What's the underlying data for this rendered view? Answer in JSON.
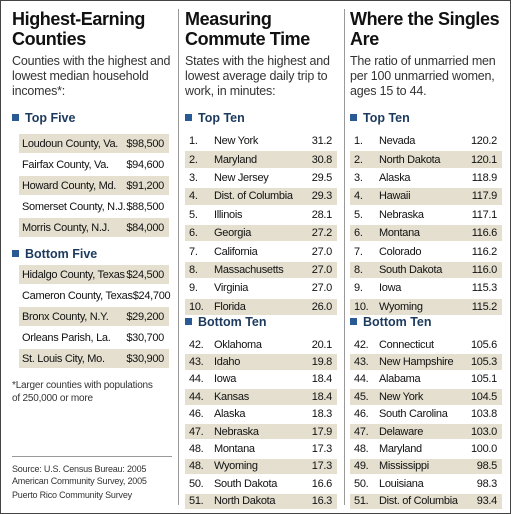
{
  "counties": {
    "title": "Highest-Earning Counties",
    "subtitle": "Counties with the highest and lowest median household incomes*:",
    "top": {
      "heading": "Top Five",
      "rows": [
        {
          "name": "Loudoun County, Va.",
          "value": "$98,500"
        },
        {
          "name": "Fairfax County, Va.",
          "value": "$94,600"
        },
        {
          "name": "Howard County, Md.",
          "value": "$91,200"
        },
        {
          "name": "Somerset County, N.J.",
          "value": "$88,500"
        },
        {
          "name": "Morris County, N.J.",
          "value": "$84,000"
        }
      ]
    },
    "bottom": {
      "heading": "Bottom Five",
      "rows": [
        {
          "name": "Hidalgo County, Texas",
          "value": "$24,500"
        },
        {
          "name": "Cameron County, Texas",
          "value": "$24,700"
        },
        {
          "name": "Bronx County, N.Y.",
          "value": "$29,200"
        },
        {
          "name": "Orleans Parish, La.",
          "value": "$30,700"
        },
        {
          "name": "St. Louis City, Mo.",
          "value": "$30,900"
        }
      ]
    },
    "footnote": "*Larger counties with populations of 250,000 or more",
    "source": "Source: U.S. Census Bureau: 2005 American Community Survey, 2005",
    "source_2": "Puerto Rico Community Survey"
  },
  "commute": {
    "title": "Measuring Commute Time",
    "subtitle": "States with the highest and lowest average daily trip to work, in minutes:",
    "top": {
      "heading": "Top Ten",
      "rows": [
        {
          "rank": "1.",
          "name": "New York",
          "value": "31.2"
        },
        {
          "rank": "2.",
          "name": "Maryland",
          "value": "30.8"
        },
        {
          "rank": "3.",
          "name": "New Jersey",
          "value": "29.5"
        },
        {
          "rank": "4.",
          "name": "Dist. of Columbia",
          "value": "29.3"
        },
        {
          "rank": "5.",
          "name": "Illinois",
          "value": "28.1"
        },
        {
          "rank": "6.",
          "name": "Georgia",
          "value": "27.2"
        },
        {
          "rank": "7.",
          "name": "California",
          "value": "27.0"
        },
        {
          "rank": "8.",
          "name": "Massachusetts",
          "value": "27.0"
        },
        {
          "rank": "9.",
          "name": "Virginia",
          "value": "27.0"
        },
        {
          "rank": "10.",
          "name": "Florida",
          "value": "26.0"
        }
      ]
    },
    "bottom": {
      "heading": "Bottom Ten",
      "rows": [
        {
          "rank": "42.",
          "name": "Oklahoma",
          "value": "20.1"
        },
        {
          "rank": "43.",
          "name": "Idaho",
          "value": "19.8"
        },
        {
          "rank": "44.",
          "name": "Iowa",
          "value": "18.4"
        },
        {
          "rank": "44.",
          "name": "Kansas",
          "value": "18.4"
        },
        {
          "rank": "46.",
          "name": "Alaska",
          "value": "18.3"
        },
        {
          "rank": "47.",
          "name": "Nebraska",
          "value": "17.9"
        },
        {
          "rank": "48.",
          "name": "Montana",
          "value": "17.3"
        },
        {
          "rank": "48.",
          "name": "Wyoming",
          "value": "17.3"
        },
        {
          "rank": "50.",
          "name": "South Dakota",
          "value": "16.6"
        },
        {
          "rank": "51.",
          "name": "North Dakota",
          "value": "16.3"
        }
      ]
    }
  },
  "singles": {
    "title": "Where the Singles Are",
    "subtitle": "The ratio of unmarried men per 100 unmarried women, ages 15 to 44.",
    "top": {
      "heading": "Top Ten",
      "rows": [
        {
          "rank": "1.",
          "name": "Nevada",
          "value": "120.2"
        },
        {
          "rank": "2.",
          "name": "North Dakota",
          "value": "120.1"
        },
        {
          "rank": "3.",
          "name": "Alaska",
          "value": "118.9"
        },
        {
          "rank": "4.",
          "name": "Hawaii",
          "value": "117.9"
        },
        {
          "rank": "5.",
          "name": "Nebraska",
          "value": "117.1"
        },
        {
          "rank": "6.",
          "name": "Montana",
          "value": "116.6"
        },
        {
          "rank": "7.",
          "name": "Colorado",
          "value": "116.2"
        },
        {
          "rank": "8.",
          "name": "South Dakota",
          "value": "116.0"
        },
        {
          "rank": "9.",
          "name": "Iowa",
          "value": "115.3"
        },
        {
          "rank": "10.",
          "name": "Wyoming",
          "value": "115.2"
        }
      ]
    },
    "bottom": {
      "heading": "Bottom Ten",
      "rows": [
        {
          "rank": "42.",
          "name": "Connecticut",
          "value": "105.6"
        },
        {
          "rank": "43.",
          "name": "New Hampshire",
          "value": "105.3"
        },
        {
          "rank": "44.",
          "name": "Alabama",
          "value": "105.1"
        },
        {
          "rank": "45.",
          "name": "New York",
          "value": "104.5"
        },
        {
          "rank": "46.",
          "name": "South Carolina",
          "value": "103.8"
        },
        {
          "rank": "47.",
          "name": "Delaware",
          "value": "103.0"
        },
        {
          "rank": "48.",
          "name": "Maryland",
          "value": "100.0"
        },
        {
          "rank": "49.",
          "name": "Mississippi",
          "value": "98.5"
        },
        {
          "rank": "50.",
          "name": "Louisiana",
          "value": "98.3"
        },
        {
          "rank": "51.",
          "name": "Dist. of Columbia",
          "value": "93.4"
        }
      ]
    }
  }
}
